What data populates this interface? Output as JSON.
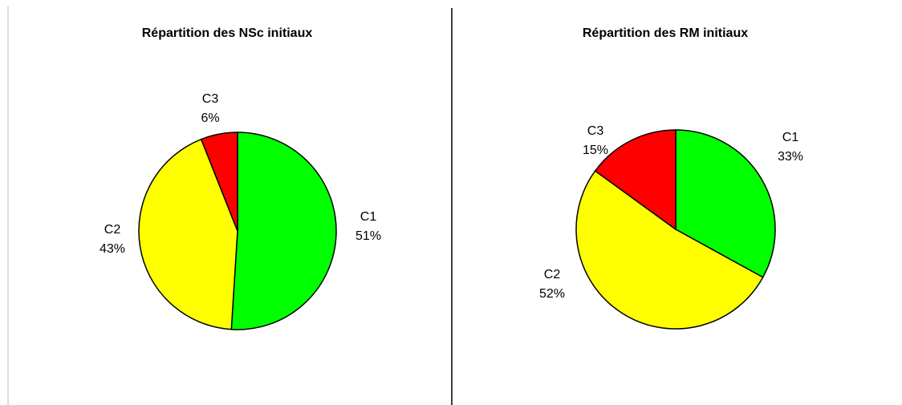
{
  "chart_data": [
    {
      "type": "pie",
      "title": "Répartition des NSc initiaux",
      "categories": [
        "C1",
        "C2",
        "C3"
      ],
      "values": [
        51,
        43,
        6
      ],
      "value_labels": [
        "51%",
        "43%",
        "6%"
      ],
      "colors": [
        "#00ff00",
        "#ffff00",
        "#ff0000"
      ]
    },
    {
      "type": "pie",
      "title": "Répartition  des RM initiaux",
      "categories": [
        "C1",
        "C2",
        "C3"
      ],
      "values": [
        33,
        52,
        15
      ],
      "value_labels": [
        "33%",
        "52%",
        "15%"
      ],
      "colors": [
        "#00ff00",
        "#ffff00",
        "#ff0000"
      ]
    }
  ]
}
